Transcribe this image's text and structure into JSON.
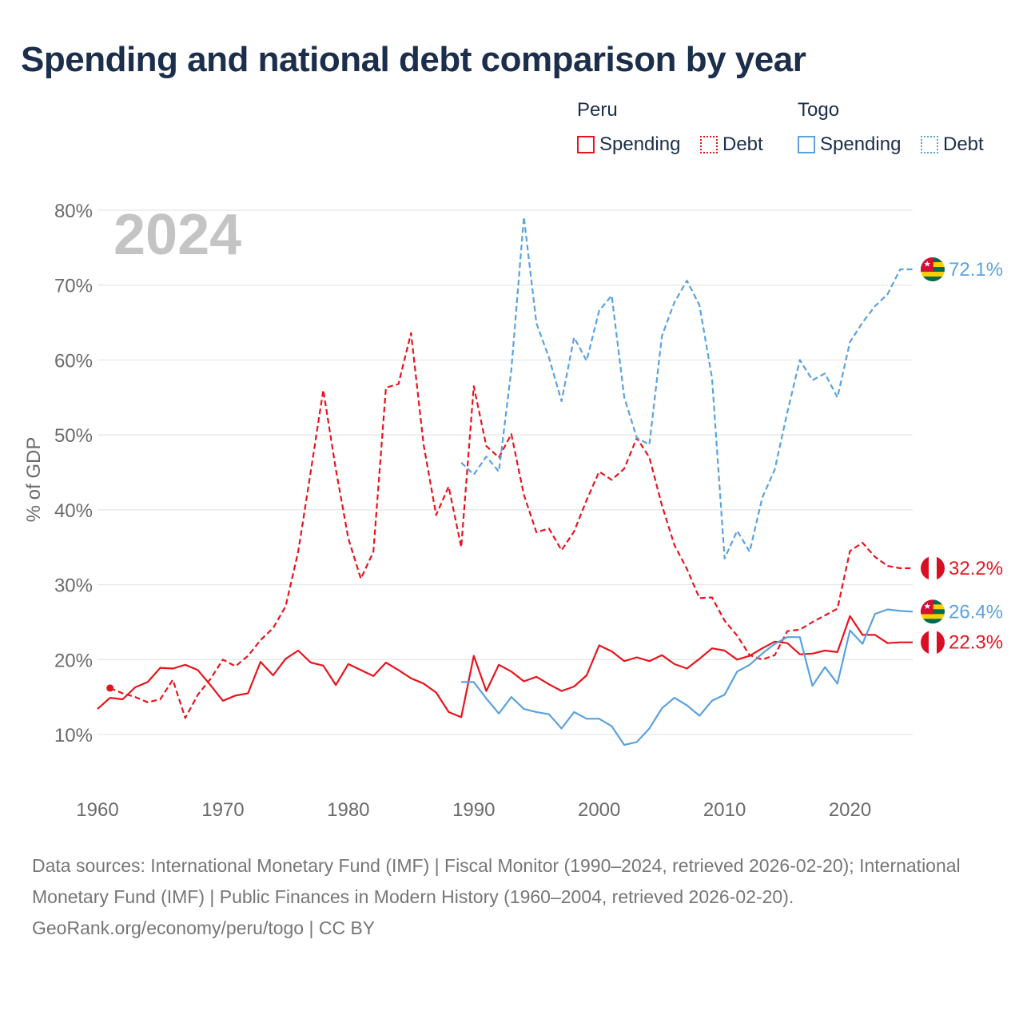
{
  "title": "Spending and national debt comparison by year",
  "year_label": "2024",
  "legend": {
    "groups": [
      {
        "country": "Peru",
        "color": "#e8141c",
        "items": [
          "Spending",
          "Debt"
        ]
      },
      {
        "country": "Togo",
        "color": "#5aa2e0",
        "items": [
          "Spending",
          "Debt"
        ]
      }
    ]
  },
  "footer": {
    "sources": "Data sources: International Monetary Fund (IMF) | Fiscal Monitor (1990–2024, retrieved 2026-02-20); International Monetary Fund (IMF) | Public Finances in Modern History (1960–2004, retrieved 2026-02-20).",
    "credit": "GeoRank.org/economy/peru/togo | CC BY"
  },
  "chart_data": {
    "type": "line",
    "title": "Spending and national debt comparison by year",
    "xlabel": "",
    "ylabel": "% of GDP",
    "xlim": [
      1960,
      2025
    ],
    "ylim": [
      5,
      82
    ],
    "x_ticks": [
      1960,
      1970,
      1980,
      1990,
      2000,
      2010,
      2020
    ],
    "y_ticks": [
      10,
      20,
      30,
      40,
      50,
      60,
      70,
      80
    ],
    "y_tick_format": "{v}%",
    "grid": true,
    "legend": "top-right",
    "series": [
      {
        "name": "Peru Debt",
        "country": "Peru",
        "measure": "Debt",
        "color": "#e8141c",
        "dashed": true,
        "end_label": "32.2%",
        "flag": "peru",
        "points": [
          [
            1961,
            16.2
          ],
          [
            1962,
            15.5
          ],
          [
            1963,
            15.0
          ],
          [
            1964,
            14.3
          ],
          [
            1965,
            14.7
          ],
          [
            1966,
            17.3
          ],
          [
            1967,
            12.2
          ],
          [
            1968,
            15.3
          ],
          [
            1969,
            17.4
          ],
          [
            1970,
            20.0
          ],
          [
            1971,
            19.1
          ],
          [
            1972,
            20.5
          ],
          [
            1973,
            22.6
          ],
          [
            1974,
            24.2
          ],
          [
            1975,
            27.1
          ],
          [
            1976,
            34.4
          ],
          [
            1977,
            45.1
          ],
          [
            1978,
            56.0
          ],
          [
            1979,
            45.4
          ],
          [
            1980,
            36.2
          ],
          [
            1981,
            30.8
          ],
          [
            1982,
            34.4
          ],
          [
            1983,
            56.3
          ],
          [
            1984,
            56.8
          ],
          [
            1985,
            63.6
          ],
          [
            1986,
            48.7
          ],
          [
            1987,
            39.3
          ],
          [
            1988,
            43.1
          ],
          [
            1989,
            35.0
          ],
          [
            1990,
            56.5
          ],
          [
            1991,
            48.5
          ],
          [
            1992,
            47.0
          ],
          [
            1993,
            50.1
          ],
          [
            1994,
            42.0
          ],
          [
            1995,
            37.0
          ],
          [
            1996,
            37.5
          ],
          [
            1997,
            34.6
          ],
          [
            1998,
            37.1
          ],
          [
            1999,
            41.3
          ],
          [
            2000,
            45.1
          ],
          [
            2001,
            44.0
          ],
          [
            2002,
            45.5
          ],
          [
            2003,
            49.6
          ],
          [
            2004,
            47.0
          ],
          [
            2005,
            40.6
          ],
          [
            2006,
            35.3
          ],
          [
            2007,
            32.1
          ],
          [
            2008,
            28.2
          ],
          [
            2009,
            28.3
          ],
          [
            2010,
            25.2
          ],
          [
            2011,
            23.2
          ],
          [
            2012,
            20.6
          ],
          [
            2013,
            20.0
          ],
          [
            2014,
            20.6
          ],
          [
            2015,
            23.8
          ],
          [
            2016,
            24.0
          ],
          [
            2017,
            25.0
          ],
          [
            2018,
            25.9
          ],
          [
            2019,
            26.8
          ],
          [
            2020,
            34.5
          ],
          [
            2021,
            35.6
          ],
          [
            2022,
            33.7
          ],
          [
            2023,
            32.5
          ],
          [
            2024,
            32.2
          ],
          [
            2025,
            32.2
          ]
        ]
      },
      {
        "name": "Peru Spending",
        "country": "Peru",
        "measure": "Spending",
        "color": "#e8141c",
        "dashed": false,
        "end_label": "22.3%",
        "flag": "peru",
        "points": [
          [
            1960,
            13.4
          ],
          [
            1961,
            14.9
          ],
          [
            1962,
            14.7
          ],
          [
            1963,
            16.3
          ],
          [
            1964,
            17.0
          ],
          [
            1965,
            18.9
          ],
          [
            1966,
            18.8
          ],
          [
            1967,
            19.3
          ],
          [
            1968,
            18.6
          ],
          [
            1969,
            16.6
          ],
          [
            1970,
            14.5
          ],
          [
            1971,
            15.2
          ],
          [
            1972,
            15.5
          ],
          [
            1973,
            19.7
          ],
          [
            1974,
            17.9
          ],
          [
            1975,
            20.1
          ],
          [
            1976,
            21.2
          ],
          [
            1977,
            19.6
          ],
          [
            1978,
            19.2
          ],
          [
            1979,
            16.6
          ],
          [
            1980,
            19.4
          ],
          [
            1981,
            18.6
          ],
          [
            1982,
            17.8
          ],
          [
            1983,
            19.6
          ],
          [
            1984,
            18.6
          ],
          [
            1985,
            17.5
          ],
          [
            1986,
            16.8
          ],
          [
            1987,
            15.6
          ],
          [
            1988,
            13.0
          ],
          [
            1989,
            12.3
          ],
          [
            1990,
            20.5
          ],
          [
            1991,
            15.8
          ],
          [
            1992,
            19.3
          ],
          [
            1993,
            18.4
          ],
          [
            1994,
            17.1
          ],
          [
            1995,
            17.7
          ],
          [
            1996,
            16.7
          ],
          [
            1997,
            15.8
          ],
          [
            1998,
            16.4
          ],
          [
            1999,
            17.9
          ],
          [
            2000,
            21.9
          ],
          [
            2001,
            21.1
          ],
          [
            2002,
            19.8
          ],
          [
            2003,
            20.3
          ],
          [
            2004,
            19.8
          ],
          [
            2005,
            20.6
          ],
          [
            2006,
            19.4
          ],
          [
            2007,
            18.8
          ],
          [
            2008,
            20.1
          ],
          [
            2009,
            21.5
          ],
          [
            2010,
            21.2
          ],
          [
            2011,
            20.0
          ],
          [
            2012,
            20.5
          ],
          [
            2013,
            21.5
          ],
          [
            2014,
            22.4
          ],
          [
            2015,
            22.2
          ],
          [
            2016,
            20.7
          ],
          [
            2017,
            20.8
          ],
          [
            2018,
            21.2
          ],
          [
            2019,
            21.0
          ],
          [
            2020,
            25.8
          ],
          [
            2021,
            23.3
          ],
          [
            2022,
            23.3
          ],
          [
            2023,
            22.2
          ],
          [
            2024,
            22.3
          ],
          [
            2025,
            22.3
          ]
        ]
      },
      {
        "name": "Togo Debt",
        "country": "Togo",
        "measure": "Debt",
        "color": "#5aa2e0",
        "dashed": true,
        "end_label": "72.1%",
        "flag": "togo",
        "points": [
          [
            1989,
            46.3
          ],
          [
            1990,
            44.7
          ],
          [
            1991,
            47.1
          ],
          [
            1992,
            45.1
          ],
          [
            1993,
            58.7
          ],
          [
            1994,
            79.1
          ],
          [
            1995,
            64.9
          ],
          [
            1996,
            60.3
          ],
          [
            1997,
            54.5
          ],
          [
            1998,
            63.0
          ],
          [
            1999,
            59.9
          ],
          [
            2000,
            66.6
          ],
          [
            2001,
            68.6
          ],
          [
            2002,
            55.0
          ],
          [
            2003,
            49.6
          ],
          [
            2004,
            48.7
          ],
          [
            2005,
            63.2
          ],
          [
            2006,
            67.7
          ],
          [
            2007,
            70.6
          ],
          [
            2008,
            67.3
          ],
          [
            2009,
            57.6
          ],
          [
            2010,
            33.5
          ],
          [
            2011,
            37.2
          ],
          [
            2012,
            34.4
          ],
          [
            2013,
            41.6
          ],
          [
            2014,
            45.4
          ],
          [
            2015,
            53.0
          ],
          [
            2016,
            60.0
          ],
          [
            2017,
            57.3
          ],
          [
            2018,
            58.2
          ],
          [
            2019,
            55.0
          ],
          [
            2020,
            62.4
          ],
          [
            2021,
            65.0
          ],
          [
            2022,
            67.2
          ],
          [
            2023,
            68.8
          ],
          [
            2024,
            72.1
          ],
          [
            2025,
            72.1
          ]
        ]
      },
      {
        "name": "Togo Spending",
        "country": "Togo",
        "measure": "Spending",
        "color": "#5aa2e0",
        "dashed": false,
        "end_label": "26.4%",
        "flag": "togo",
        "points": [
          [
            1989,
            17.0
          ],
          [
            1990,
            17.0
          ],
          [
            1991,
            14.8
          ],
          [
            1992,
            12.8
          ],
          [
            1993,
            15.0
          ],
          [
            1994,
            13.4
          ],
          [
            1995,
            13.0
          ],
          [
            1996,
            12.7
          ],
          [
            1997,
            10.8
          ],
          [
            1998,
            13.0
          ],
          [
            1999,
            12.1
          ],
          [
            2000,
            12.1
          ],
          [
            2001,
            11.1
          ],
          [
            2002,
            8.6
          ],
          [
            2003,
            9.0
          ],
          [
            2004,
            10.8
          ],
          [
            2005,
            13.5
          ],
          [
            2006,
            14.9
          ],
          [
            2007,
            13.9
          ],
          [
            2008,
            12.5
          ],
          [
            2009,
            14.5
          ],
          [
            2010,
            15.3
          ],
          [
            2011,
            18.4
          ],
          [
            2012,
            19.3
          ],
          [
            2013,
            20.8
          ],
          [
            2014,
            22.1
          ],
          [
            2015,
            23.0
          ],
          [
            2016,
            23.0
          ],
          [
            2017,
            16.5
          ],
          [
            2018,
            19.0
          ],
          [
            2019,
            16.8
          ],
          [
            2020,
            23.9
          ],
          [
            2021,
            22.1
          ],
          [
            2022,
            26.1
          ],
          [
            2023,
            26.7
          ],
          [
            2024,
            26.5
          ],
          [
            2025,
            26.4
          ]
        ]
      }
    ],
    "markers": [
      {
        "series": "Peru Debt",
        "x": 1961,
        "y": 16.2
      }
    ]
  }
}
